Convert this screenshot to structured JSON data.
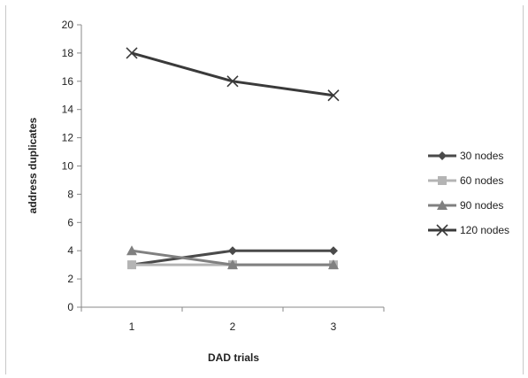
{
  "chart_data": {
    "type": "line",
    "title": "",
    "xlabel": "DAD trials",
    "ylabel": "address duplicates",
    "categories": [
      "1",
      "2",
      "3"
    ],
    "ylim": [
      0,
      20
    ],
    "yticks": [
      "0",
      "2",
      "4",
      "6",
      "8",
      "10",
      "12",
      "14",
      "16",
      "18",
      "20"
    ],
    "grid": false,
    "legend_position": "right",
    "series": [
      {
        "name": "30 nodes",
        "values": [
          3,
          4,
          4
        ],
        "color": "#4a4a4a",
        "marker": "diamond"
      },
      {
        "name": "60 nodes",
        "values": [
          3,
          3,
          3
        ],
        "color": "#b4b4b4",
        "marker": "square"
      },
      {
        "name": "90 nodes",
        "values": [
          4,
          3,
          3
        ],
        "color": "#808080",
        "marker": "triangle"
      },
      {
        "name": "120 nodes",
        "values": [
          18,
          16,
          15
        ],
        "color": "#3a3a3a",
        "marker": "x"
      }
    ]
  }
}
